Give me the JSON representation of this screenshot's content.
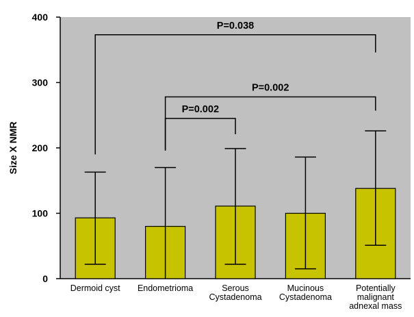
{
  "chart_data": {
    "type": "bar",
    "title": "",
    "xlabel": "",
    "ylabel": "Size X NMR",
    "ylim": [
      0,
      400
    ],
    "yticks": [
      "0",
      "100",
      "200",
      "300",
      "400"
    ],
    "grid": false,
    "legend": "none",
    "categories": [
      [
        "Dermoid cyst"
      ],
      [
        "Endometrioma"
      ],
      [
        "Serous",
        "Cystadenoma"
      ],
      [
        "Mucinous",
        "Cystadenoma"
      ],
      [
        "Potentially",
        "malignant",
        "adnexal mass"
      ]
    ],
    "values": [
      93,
      80,
      111,
      100,
      138
    ],
    "error_low": [
      22,
      0,
      22,
      15,
      51
    ],
    "error_high": [
      163,
      170,
      199,
      186,
      226
    ],
    "annotations": [
      {
        "label": "P=0.038",
        "from": 0,
        "to": 4,
        "from_y": 190,
        "to_y": 346,
        "bracket_y": 373
      },
      {
        "label": "P=0.002",
        "from": 1,
        "to": 4,
        "from_y": 196,
        "to_y": 257,
        "bracket_y": 278
      },
      {
        "label": "P=0.002",
        "from": 1,
        "to": 2,
        "from_y": 196,
        "to_y": 221,
        "bracket_y": 245
      }
    ],
    "colors": {
      "bar_fill": "#c7c300",
      "plot_background": "#c0c0c0",
      "axis": "#000000"
    }
  }
}
